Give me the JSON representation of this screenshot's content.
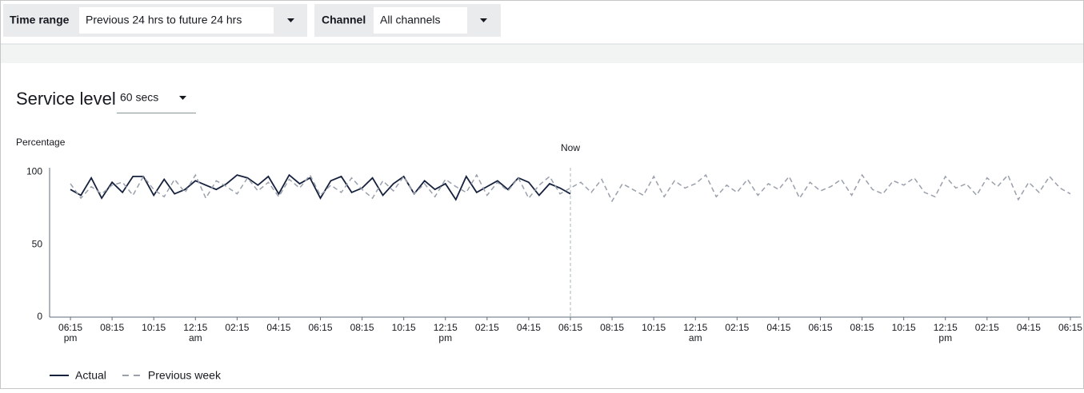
{
  "filters": {
    "time_range": {
      "label": "Time range",
      "value": "Previous 24 hrs to future 24 hrs"
    },
    "channel": {
      "label": "Channel",
      "value": "All channels"
    }
  },
  "panel": {
    "title": "Service level",
    "dropdown": "60 secs"
  },
  "chart_data": {
    "type": "line",
    "y_label": "Percentage",
    "annotation": {
      "text": "Now",
      "x": 24
    },
    "x": [
      0,
      0.5,
      1,
      1.5,
      2,
      2.5,
      3,
      3.5,
      4,
      4.5,
      5,
      5.5,
      6,
      6.5,
      7,
      7.5,
      8,
      8.5,
      9,
      9.5,
      10,
      10.5,
      11,
      11.5,
      12,
      12.5,
      13,
      13.5,
      14,
      14.5,
      15,
      15.5,
      16,
      16.5,
      17,
      17.5,
      18,
      18.5,
      19,
      19.5,
      20,
      20.5,
      21,
      21.5,
      22,
      22.5,
      23,
      23.5,
      24,
      24.5,
      25,
      25.5,
      26,
      26.5,
      27,
      27.5,
      28,
      28.5,
      29,
      29.5,
      30,
      30.5,
      31,
      31.5,
      32,
      32.5,
      33,
      33.5,
      34,
      34.5,
      35,
      35.5,
      36,
      36.5,
      37,
      37.5,
      38,
      38.5,
      39,
      39.5,
      40,
      40.5,
      41,
      41.5,
      42,
      42.5,
      43,
      43.5,
      44,
      44.5,
      45,
      45.5,
      46,
      46.5,
      47,
      47.5,
      48
    ],
    "series": [
      {
        "name": "Actual",
        "color": "#16213e",
        "dashed": false,
        "values": [
          88,
          84,
          96,
          82,
          93,
          86,
          97,
          97,
          84,
          95,
          85,
          88,
          94,
          91,
          88,
          92,
          98,
          96,
          91,
          97,
          85,
          98,
          92,
          96,
          82,
          94,
          97,
          86,
          89,
          96,
          84,
          92,
          97,
          85,
          94,
          88,
          92,
          81,
          97,
          86,
          90,
          94,
          88,
          96,
          93,
          84,
          92,
          89,
          85,
          null,
          null,
          null,
          null,
          null,
          null,
          null,
          null,
          null,
          null,
          null,
          null,
          null,
          null,
          null,
          null,
          null,
          null,
          null,
          null,
          null,
          null,
          null,
          null,
          null,
          null,
          null,
          null,
          null,
          null,
          null,
          null,
          null,
          null,
          null,
          null,
          null,
          null,
          null,
          null,
          null,
          null,
          null,
          null,
          null,
          null,
          null,
          null
        ]
      },
      {
        "name": "Previous week",
        "color": "#9aa0ab",
        "dashed": true,
        "values": [
          92,
          82,
          90,
          85,
          91,
          93,
          84,
          97,
          88,
          83,
          95,
          86,
          98,
          82,
          94,
          90,
          85,
          96,
          87,
          93,
          83,
          95,
          89,
          98,
          84,
          91,
          86,
          96,
          88,
          82,
          94,
          87,
          97,
          85,
          92,
          83,
          95,
          90,
          86,
          98,
          84,
          93,
          87,
          96,
          82,
          91,
          97,
          85,
          89,
          93,
          86,
          95,
          80,
          92,
          88,
          84,
          97,
          83,
          94,
          89,
          92,
          98,
          83,
          91,
          86,
          95,
          84,
          92,
          88,
          97,
          82,
          93,
          87,
          90,
          95,
          84,
          98,
          88,
          85,
          94,
          91,
          96,
          86,
          83,
          97,
          89,
          92,
          84,
          96,
          90,
          98,
          81,
          93,
          86,
          97,
          89,
          85
        ]
      }
    ],
    "xlim": [
      -1,
      48.5
    ],
    "xticks": [
      {
        "value": 0,
        "label": "06:15 pm"
      },
      {
        "value": 2,
        "label": "08:15"
      },
      {
        "value": 4,
        "label": "10:15"
      },
      {
        "value": 6,
        "label": "12:15 am"
      },
      {
        "value": 8,
        "label": "02:15"
      },
      {
        "value": 10,
        "label": "04:15"
      },
      {
        "value": 12,
        "label": "06:15"
      },
      {
        "value": 14,
        "label": "08:15"
      },
      {
        "value": 16,
        "label": "10:15"
      },
      {
        "value": 18,
        "label": "12:15 pm"
      },
      {
        "value": 20,
        "label": "02:15"
      },
      {
        "value": 22,
        "label": "04:15"
      },
      {
        "value": 24,
        "label": "06:15"
      },
      {
        "value": 26,
        "label": "08:15"
      },
      {
        "value": 28,
        "label": "10:15"
      },
      {
        "value": 30,
        "label": "12:15 am"
      },
      {
        "value": 32,
        "label": "02:15"
      },
      {
        "value": 34,
        "label": "04:15"
      },
      {
        "value": 36,
        "label": "06:15"
      },
      {
        "value": 38,
        "label": "08:15"
      },
      {
        "value": 40,
        "label": "10:15"
      },
      {
        "value": 42,
        "label": "12:15 pm"
      },
      {
        "value": 44,
        "label": "02:15"
      },
      {
        "value": 46,
        "label": "04:15"
      },
      {
        "value": 48,
        "label": "06:15"
      }
    ],
    "ylim": [
      0,
      103
    ],
    "yticks": [
      0,
      50,
      100
    ],
    "grid": false
  }
}
